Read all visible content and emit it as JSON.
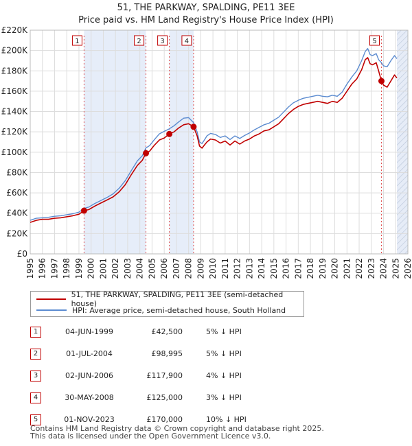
{
  "title_line1": "51, THE PARKWAY, SPALDING, PE11 3EE",
  "title_line2": "Price paid vs. HM Land Registry's House Price Index (HPI)",
  "chart_data": {
    "type": "line",
    "title": "51, THE PARKWAY, SPALDING, PE11 3EE",
    "subtitle": "Price paid vs. HM Land Registry's House Price Index (HPI)",
    "xlabel": "",
    "ylabel": "",
    "xlim": [
      1995,
      2026
    ],
    "ylim": [
      0,
      220000
    ],
    "x_ticks": [
      1995,
      1996,
      1997,
      1998,
      1999,
      2000,
      2001,
      2002,
      2003,
      2004,
      2005,
      2006,
      2007,
      2008,
      2009,
      2010,
      2011,
      2012,
      2013,
      2014,
      2015,
      2016,
      2017,
      2018,
      2019,
      2020,
      2021,
      2022,
      2023,
      2024,
      2025,
      2026
    ],
    "y_ticks": [
      0,
      20000,
      40000,
      60000,
      80000,
      100000,
      120000,
      140000,
      160000,
      180000,
      200000,
      220000
    ],
    "y_tick_labels": [
      "£0",
      "£20K",
      "£40K",
      "£60K",
      "£80K",
      "£100K",
      "£120K",
      "£140K",
      "£160K",
      "£180K",
      "£200K",
      "£220K"
    ],
    "grid": true,
    "series": [
      {
        "name": "51, THE PARKWAY, SPALDING, PE11 3EE (semi-detached house)",
        "color": "#c00000",
        "x": [
          1995.0,
          1995.5,
          1996.0,
          1996.5,
          1997.0,
          1997.5,
          1998.0,
          1998.5,
          1999.0,
          1999.42,
          1999.8,
          2000.3,
          2000.8,
          2001.3,
          2001.8,
          2002.3,
          2002.8,
          2003.3,
          2003.8,
          2004.2,
          2004.5,
          2004.8,
          2005.2,
          2005.6,
          2006.0,
          2006.42,
          2006.8,
          2007.2,
          2007.6,
          2008.0,
          2008.41,
          2008.7,
          2008.9,
          2009.1,
          2009.3,
          2009.5,
          2009.8,
          2010.2,
          2010.6,
          2011.0,
          2011.4,
          2011.8,
          2012.2,
          2012.6,
          2013.0,
          2013.4,
          2013.8,
          2014.2,
          2014.6,
          2015.0,
          2015.4,
          2015.8,
          2016.2,
          2016.6,
          2017.0,
          2017.4,
          2017.8,
          2018.2,
          2018.6,
          2019.0,
          2019.4,
          2019.8,
          2020.2,
          2020.6,
          2021.0,
          2021.4,
          2021.8,
          2022.2,
          2022.5,
          2022.7,
          2022.9,
          2023.1,
          2023.4,
          2023.6,
          2023.83,
          2024.0,
          2024.3,
          2024.6,
          2024.9,
          2025.1
        ],
        "values": [
          31000,
          33000,
          34000,
          34000,
          35000,
          35500,
          36500,
          37500,
          39000,
          42500,
          43500,
          47000,
          50000,
          53000,
          56000,
          61000,
          68000,
          78000,
          87000,
          92000,
          98995,
          101000,
          107000,
          112000,
          114000,
          117900,
          120000,
          124000,
          127000,
          128000,
          125000,
          116000,
          106000,
          104000,
          107000,
          110000,
          113000,
          112000,
          109000,
          111000,
          107000,
          111000,
          108000,
          111000,
          113000,
          116000,
          118000,
          121000,
          122000,
          125000,
          128000,
          133000,
          138000,
          142000,
          145000,
          147000,
          148000,
          149000,
          150000,
          149000,
          148000,
          150000,
          149000,
          153000,
          160000,
          167000,
          172000,
          181000,
          191000,
          193000,
          187000,
          186000,
          188000,
          180000,
          170000,
          166000,
          164000,
          170000,
          176000,
          173000
        ]
      },
      {
        "name": "HPI: Average price, semi-detached house, South Holland",
        "color": "#5b8bd0",
        "x": [
          1995.0,
          1995.5,
          1996.0,
          1996.5,
          1997.0,
          1997.5,
          1998.0,
          1998.5,
          1999.0,
          1999.42,
          1999.8,
          2000.3,
          2000.8,
          2001.3,
          2001.8,
          2002.3,
          2002.8,
          2003.3,
          2003.8,
          2004.2,
          2004.5,
          2004.8,
          2005.2,
          2005.6,
          2006.0,
          2006.42,
          2006.8,
          2007.2,
          2007.6,
          2008.0,
          2008.41,
          2008.7,
          2008.9,
          2009.1,
          2009.3,
          2009.5,
          2009.8,
          2010.2,
          2010.6,
          2011.0,
          2011.4,
          2011.8,
          2012.2,
          2012.6,
          2013.0,
          2013.4,
          2013.8,
          2014.2,
          2014.6,
          2015.0,
          2015.4,
          2015.8,
          2016.2,
          2016.6,
          2017.0,
          2017.4,
          2017.8,
          2018.2,
          2018.6,
          2019.0,
          2019.4,
          2019.8,
          2020.2,
          2020.6,
          2021.0,
          2021.4,
          2021.8,
          2022.2,
          2022.5,
          2022.7,
          2022.9,
          2023.1,
          2023.4,
          2023.6,
          2023.83,
          2024.0,
          2024.3,
          2024.6,
          2024.9,
          2025.1
        ],
        "values": [
          33000,
          35000,
          35500,
          36000,
          37000,
          37500,
          38500,
          39500,
          41000,
          44700,
          46000,
          49500,
          52500,
          55500,
          59000,
          64500,
          72000,
          82000,
          91500,
          96500,
          104200,
          106500,
          112500,
          118000,
          120500,
          123000,
          126000,
          130000,
          133500,
          134000,
          129000,
          120000,
          110000,
          108500,
          112000,
          116000,
          118500,
          117500,
          114500,
          116000,
          112500,
          116000,
          113500,
          116500,
          119000,
          122000,
          124500,
          127000,
          128500,
          131500,
          134500,
          139500,
          144500,
          148500,
          151000,
          153000,
          154000,
          155000,
          156000,
          155000,
          154500,
          156000,
          155000,
          159000,
          167000,
          174000,
          180000,
          190000,
          199000,
          202000,
          196000,
          195000,
          197000,
          191000,
          188000,
          185000,
          184000,
          190000,
          195000,
          192000
        ]
      }
    ],
    "sale_markers": [
      {
        "label": "1",
        "x": 1999.42,
        "value": 42500
      },
      {
        "label": "2",
        "x": 2004.5,
        "value": 98995
      },
      {
        "label": "3",
        "x": 2006.42,
        "value": 117900
      },
      {
        "label": "4",
        "x": 2008.41,
        "value": 125000
      },
      {
        "label": "5",
        "x": 2023.83,
        "value": 170000
      }
    ],
    "shaded_ranges": [
      [
        1999.42,
        2004.5
      ],
      [
        2006.42,
        2008.41
      ],
      [
        2025.1,
        2026.0
      ]
    ]
  },
  "legend": [
    {
      "label": "51, THE PARKWAY, SPALDING, PE11 3EE (semi-detached house)",
      "color": "#c00000"
    },
    {
      "label": "HPI: Average price, semi-detached house, South Holland",
      "color": "#5b8bd0"
    }
  ],
  "sales": [
    {
      "num": "1",
      "date": "04-JUN-1999",
      "price": "£42,500",
      "hpi": "5% ↓ HPI"
    },
    {
      "num": "2",
      "date": "01-JUL-2004",
      "price": "£98,995",
      "hpi": "5% ↓ HPI"
    },
    {
      "num": "3",
      "date": "02-JUN-2006",
      "price": "£117,900",
      "hpi": "4% ↓ HPI"
    },
    {
      "num": "4",
      "date": "30-MAY-2008",
      "price": "£125,000",
      "hpi": "3% ↓ HPI"
    },
    {
      "num": "5",
      "date": "01-NOV-2023",
      "price": "£170,000",
      "hpi": "10% ↓ HPI"
    }
  ],
  "footer_line1": "Contains HM Land Registry data © Crown copyright and database right 2025.",
  "footer_line2": "This data is licensed under the Open Government Licence v3.0."
}
